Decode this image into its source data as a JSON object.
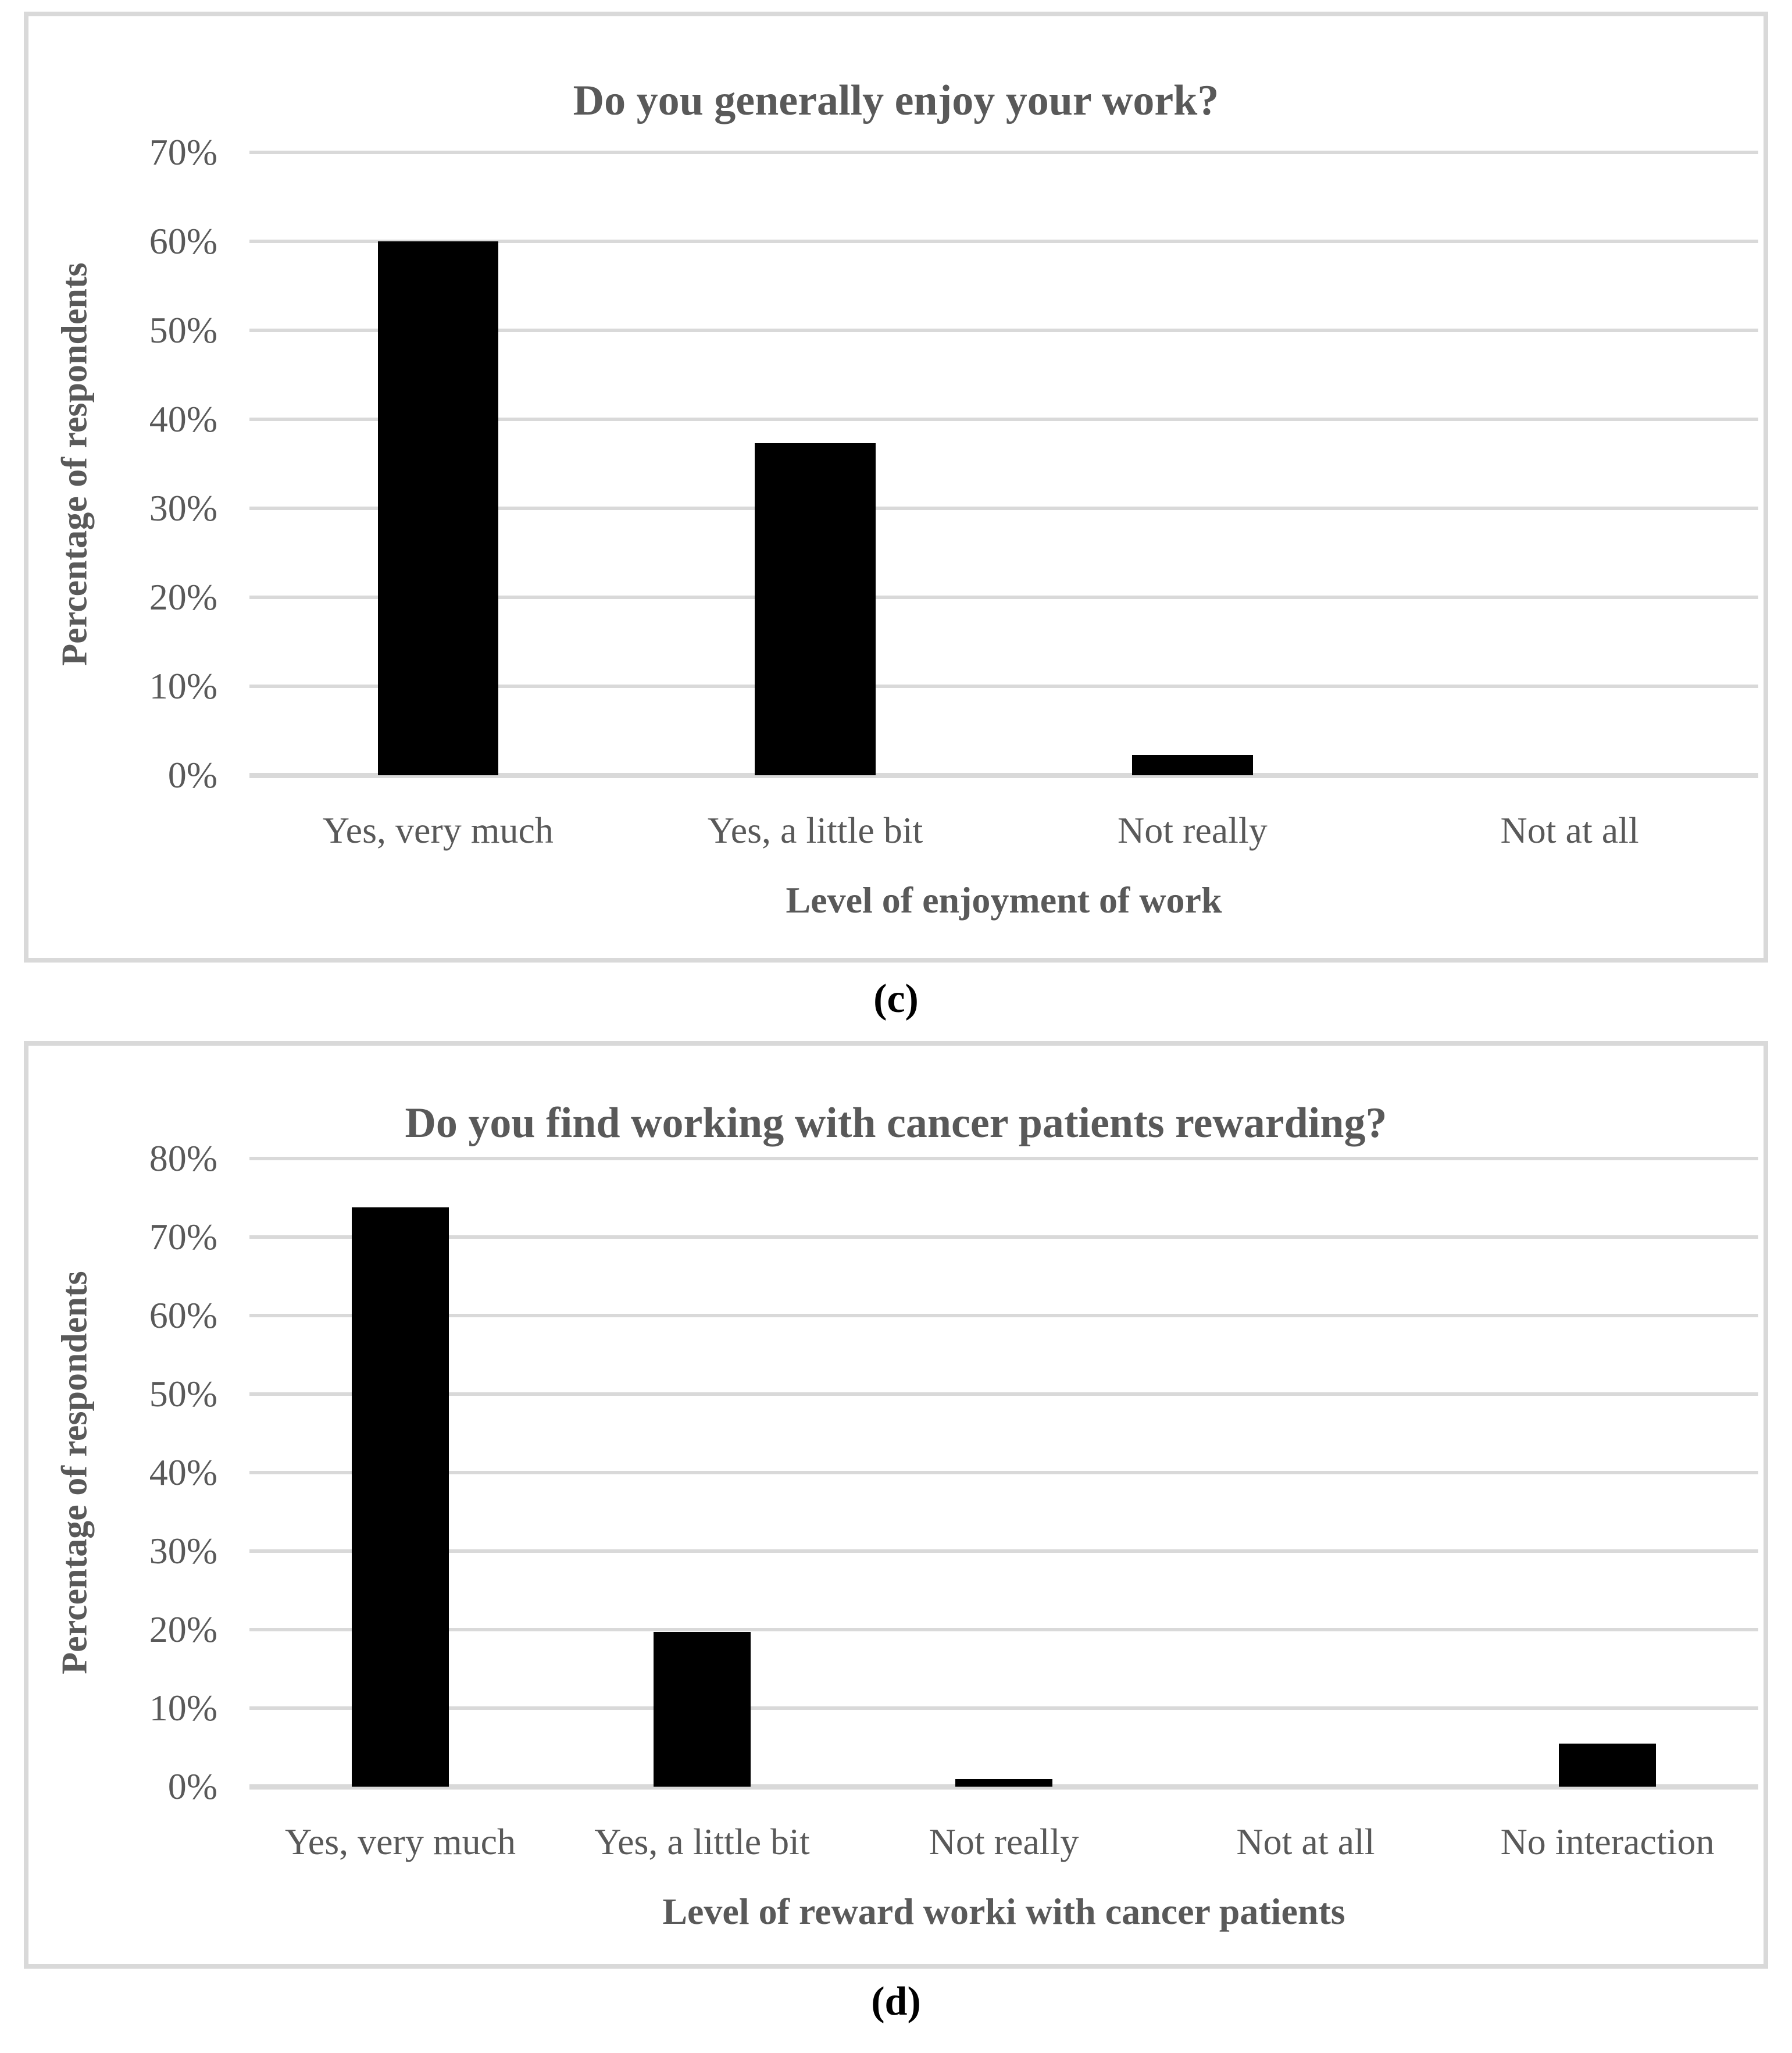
{
  "colors": {
    "background": "#ffffff",
    "bar": "#000000",
    "gridline": "#d9d9d9",
    "panel_border": "#d9d9d9",
    "text": "#595959",
    "caption_text": "#000000"
  },
  "figures": [
    {
      "caption": "(c)"
    },
    {
      "caption": "(d)"
    }
  ],
  "chart_data": [
    {
      "type": "bar",
      "title": "Do you generally enjoy your work?",
      "categories": [
        "Yes, very much",
        "Yes, a little bit",
        "Not really",
        "Not at all"
      ],
      "values": [
        60,
        37.3,
        2.3,
        0
      ],
      "xlabel": "Level of enjoyment of work",
      "ylabel": "Percentage of respondents",
      "ylim": [
        0,
        70
      ],
      "ytick_step": 10,
      "ytick_labels": [
        "70%",
        "60%",
        "50%",
        "40%",
        "30%",
        "20%",
        "10%",
        "0%"
      ],
      "grid": true,
      "legend": false,
      "bar_color": "#000000"
    },
    {
      "type": "bar",
      "title": "Do you find working with cancer patients rewarding?",
      "categories": [
        "Yes, very much",
        "Yes, a little bit",
        "Not really",
        "Not at all",
        "No interaction"
      ],
      "values": [
        73.8,
        19.7,
        1,
        0,
        5.5
      ],
      "xlabel": "Level of reward worki with cancer patients",
      "ylabel": "Percentage of respondents",
      "ylim": [
        0,
        80
      ],
      "ytick_step": 10,
      "ytick_labels": [
        "80%",
        "70%",
        "60%",
        "50%",
        "40%",
        "30%",
        "20%",
        "10%",
        "0%"
      ],
      "grid": true,
      "legend": false,
      "bar_color": "#000000"
    }
  ]
}
